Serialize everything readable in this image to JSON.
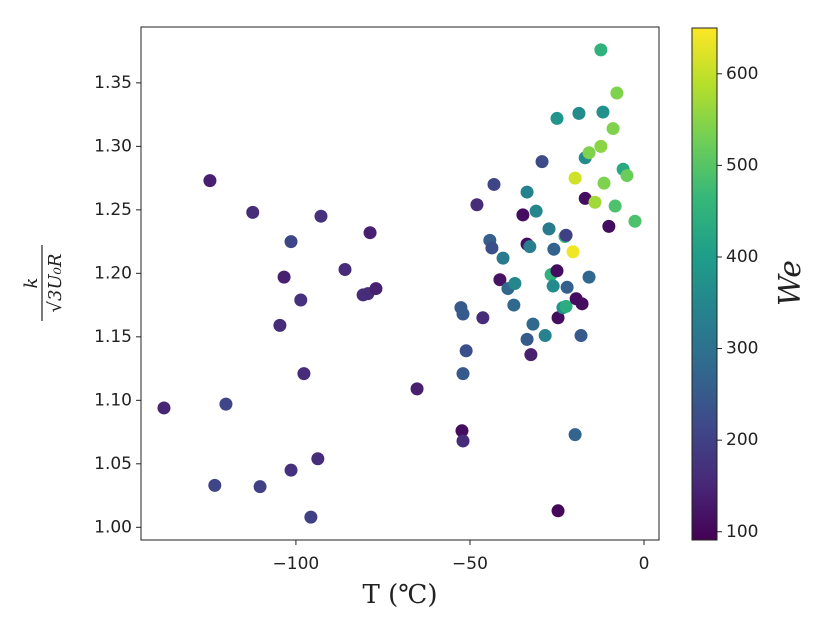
{
  "chart_data": {
    "type": "scatter",
    "xlabel": "T (℃)",
    "ylabel_numerator": "k",
    "ylabel_denominator": "√3U₀R",
    "colorbar_label": "We",
    "colormap": "viridis",
    "x": [
      -137.9,
      -124.7,
      -123.3,
      -120.1,
      -112.4,
      -110.3,
      -104.6,
      -103.4,
      -101.4,
      -101.4,
      -98.6,
      -97.7,
      -95.7,
      -93.7,
      -92.8,
      -85.9,
      -80.7,
      -79.3,
      -78.7,
      -77.0,
      -65.2,
      -52.6,
      -52.0,
      -52.3,
      -52.0,
      -52.0,
      -51.1,
      -48.0,
      -46.3,
      -44.3,
      -43.7,
      -43.1,
      -41.4,
      -40.5,
      -39.1,
      -37.4,
      -37.1,
      -34.8,
      -33.6,
      -33.6,
      -32.8,
      -33.6,
      -32.5,
      -31.9,
      -31.0,
      -29.3,
      -28.4,
      -27.3,
      -26.7,
      -26.1,
      -25.9,
      -25.0,
      -25.0,
      -24.7,
      -24.7,
      -23.3,
      -22.7,
      -22.4,
      -22.4,
      -22.1,
      -20.4,
      -19.8,
      -19.8,
      -19.5,
      -18.7,
      -18.1,
      -17.8,
      -16.9,
      -16.9,
      -15.8,
      -15.8,
      -14.1,
      -12.4,
      -12.4,
      -11.8,
      -11.5,
      -10.1,
      -8.9,
      -8.3,
      -7.8,
      -6.0,
      -4.9,
      -2.6
    ],
    "y": [
      1.094,
      1.273,
      1.033,
      1.097,
      1.248,
      1.032,
      1.159,
      1.197,
      1.225,
      1.045,
      1.179,
      1.121,
      1.008,
      1.054,
      1.245,
      1.203,
      1.183,
      1.184,
      1.232,
      1.188,
      1.109,
      1.173,
      1.168,
      1.076,
      1.068,
      1.121,
      1.139,
      1.254,
      1.165,
      1.226,
      1.22,
      1.27,
      1.195,
      1.212,
      1.188,
      1.175,
      1.192,
      1.246,
      1.264,
      1.223,
      1.221,
      1.148,
      1.136,
      1.16,
      1.249,
      1.288,
      1.151,
      1.235,
      1.199,
      1.19,
      1.219,
      1.322,
      1.202,
      1.165,
      1.013,
      1.173,
      1.229,
      1.174,
      1.23,
      1.189,
      1.217,
      1.275,
      1.073,
      1.18,
      1.326,
      1.151,
      1.176,
      1.259,
      1.291,
      1.295,
      1.197,
      1.256,
      1.376,
      1.3,
      1.327,
      1.271,
      1.237,
      1.314,
      1.253,
      1.342,
      1.282,
      1.277,
      1.241
    ],
    "c": [
      150,
      140,
      210,
      210,
      160,
      200,
      160,
      140,
      210,
      170,
      170,
      160,
      200,
      160,
      170,
      160,
      160,
      160,
      140,
      140,
      140,
      250,
      250,
      110,
      160,
      250,
      230,
      160,
      160,
      260,
      230,
      210,
      120,
      320,
      280,
      280,
      350,
      110,
      340,
      110,
      330,
      250,
      140,
      280,
      350,
      220,
      340,
      320,
      450,
      360,
      270,
      380,
      110,
      110,
      100,
      380,
      460,
      440,
      200,
      260,
      640,
      610,
      270,
      110,
      360,
      250,
      110,
      110,
      360,
      540,
      280,
      570,
      450,
      550,
      370,
      540,
      110,
      540,
      490,
      540,
      430,
      520,
      490
    ],
    "xlim": [
      -144.5,
      4.3
    ],
    "ylim": [
      0.99,
      1.394
    ],
    "clim": [
      91,
      650
    ],
    "xticks": [
      {
        "value": -100,
        "label": "−100"
      },
      {
        "value": -50,
        "label": "−50"
      },
      0
    ],
    "yticks": [
      {
        "value": 1.0,
        "label": "1.00"
      },
      1.05,
      {
        "value": 1.1,
        "label": "1.10"
      },
      1.15,
      {
        "value": 1.2,
        "label": "1.20"
      },
      1.25,
      {
        "value": 1.3,
        "label": "1.30"
      },
      1.35
    ],
    "cticks": [
      100,
      200,
      300,
      400,
      500,
      600
    ]
  }
}
